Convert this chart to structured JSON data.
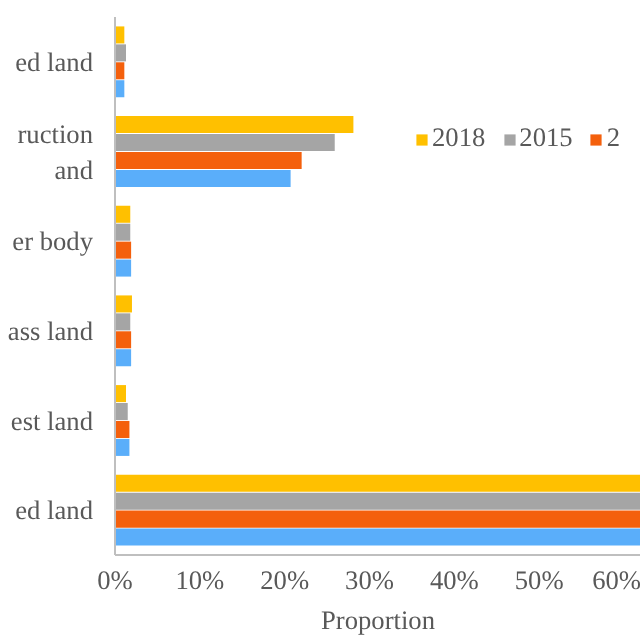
{
  "chart_data": {
    "type": "bar",
    "orientation": "horizontal",
    "xlabel": "Proportion",
    "categories": [
      "ed land",
      "ruction\nand",
      "er body",
      "ass land",
      "est land",
      "ed land"
    ],
    "series": [
      {
        "name": "2018",
        "color": "#ffc000",
        "values": [
          1.1,
          28.1,
          1.8,
          2.0,
          1.3,
          62
        ]
      },
      {
        "name": "2015",
        "color": "#a5a5a5",
        "values": [
          1.3,
          25.9,
          1.8,
          1.8,
          1.5,
          62
        ]
      },
      {
        "name": "2",
        "color": "#f4600c",
        "values": [
          1.1,
          22.0,
          1.9,
          1.9,
          1.7,
          62
        ]
      },
      {
        "color": "#5aaefa",
        "values": [
          1.1,
          20.7,
          1.9,
          1.9,
          1.7,
          62
        ]
      }
    ],
    "xlim": [
      0,
      62
    ],
    "xticks": [
      {
        "value": 0,
        "label": "0%"
      },
      {
        "value": 10,
        "label": "10%"
      },
      {
        "value": 20,
        "label": "20%"
      },
      {
        "value": 30,
        "label": "30%"
      },
      {
        "value": 40,
        "label": "40%"
      },
      {
        "value": 50,
        "label": "50%"
      },
      {
        "value": 60,
        "label": "60%"
      }
    ],
    "grid": false,
    "legend": "top right"
  }
}
